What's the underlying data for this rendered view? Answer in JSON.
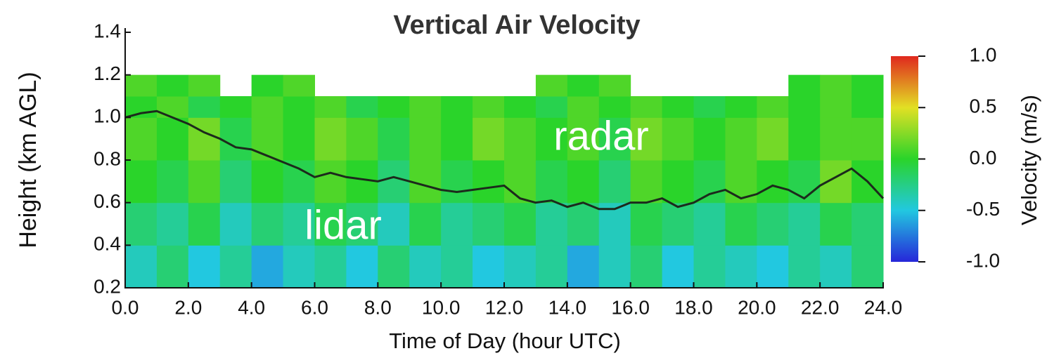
{
  "chart_data": {
    "type": "heatmap",
    "title": "Vertical Air Velocity",
    "x_label": "Time of Day (hour UTC)",
    "y_label": "Height (km AGL)",
    "colorbar_label": "Velocity (m/s)",
    "annotations": [
      "radar",
      "lidar"
    ],
    "xlim": [
      0,
      24
    ],
    "xticks": [
      {
        "value": 0,
        "label": "0.0"
      },
      {
        "value": 2,
        "label": "2.0"
      },
      {
        "value": 4,
        "label": "4.0"
      },
      {
        "value": 6,
        "label": "6.0"
      },
      {
        "value": 8,
        "label": "8.0"
      },
      {
        "value": 10,
        "label": "10.0"
      },
      {
        "value": 12,
        "label": "12.0"
      },
      {
        "value": 14,
        "label": "14.0"
      },
      {
        "value": 16,
        "label": "16.0"
      },
      {
        "value": 18,
        "label": "18.0"
      },
      {
        "value": 20,
        "label": "20.0"
      },
      {
        "value": 22,
        "label": "22.0"
      },
      {
        "value": 24,
        "label": "24.0"
      }
    ],
    "ylim": [
      0.2,
      1.4
    ],
    "yticks": [
      0.2,
      0.4,
      0.6,
      0.8,
      {
        "value": 1,
        "label": "1.0"
      },
      1.2,
      1.4
    ],
    "clim": [
      -1,
      1
    ],
    "cticks": [
      {
        "value": -1,
        "label": "-1.0"
      },
      -0.5,
      {
        "value": 0,
        "label": "0.0"
      },
      0.5,
      {
        "value": 1,
        "label": "1.0"
      }
    ],
    "colormap": [
      "#2626d9",
      "#22c8e0",
      "#2ad42a",
      "#e2e024",
      "#e0281e"
    ],
    "x_bins": [
      0,
      1,
      2,
      3,
      4,
      5,
      6,
      7,
      8,
      9,
      10,
      11,
      12,
      13,
      14,
      15,
      16,
      17,
      18,
      19,
      20,
      21,
      22,
      23,
      24
    ],
    "y_bins": [
      0.2,
      0.4,
      0.6,
      0.8,
      1.0,
      1.1,
      1.2
    ],
    "z": [
      [
        -0.4,
        -0.2,
        -0.5,
        -0.3,
        -0.6,
        -0.4,
        -0.3,
        -0.5,
        -0.2,
        -0.4,
        -0.3,
        -0.5,
        -0.4,
        -0.3,
        -0.6,
        -0.4,
        -0.2,
        -0.5,
        -0.3,
        -0.4,
        -0.5,
        -0.3,
        -0.4,
        -0.2
      ],
      [
        -0.2,
        -0.3,
        -0.1,
        -0.4,
        -0.2,
        -0.3,
        -0.1,
        -0.2,
        -0.4,
        -0.1,
        -0.3,
        -0.2,
        -0.1,
        -0.3,
        -0.2,
        -0.4,
        -0.1,
        -0.2,
        -0.3,
        -0.1,
        -0.2,
        -0.3,
        -0.1,
        -0.2
      ],
      [
        0.0,
        -0.1,
        0.1,
        -0.2,
        0.0,
        -0.1,
        0.1,
        0.0,
        -0.2,
        0.1,
        -0.1,
        0.0,
        0.1,
        -0.1,
        0.0,
        -0.2,
        0.1,
        0.0,
        -0.1,
        0.1,
        0.0,
        -0.1,
        0.2,
        0.0
      ],
      [
        0.1,
        0.0,
        0.2,
        -0.1,
        0.1,
        0.0,
        0.2,
        0.1,
        -0.1,
        0.1,
        0.0,
        0.2,
        0.1,
        0.0,
        0.1,
        -0.1,
        0.2,
        0.1,
        0.0,
        0.1,
        0.2,
        0.0,
        0.1,
        0.1
      ],
      [
        0.0,
        0.1,
        -0.1,
        0.0,
        0.1,
        0.0,
        0.1,
        -0.1,
        0.0,
        0.1,
        0.0,
        0.1,
        0.0,
        -0.1,
        0.1,
        0.0,
        0.1,
        0.0,
        -0.1,
        0.0,
        0.1,
        0.0,
        0.1,
        0.0
      ],
      [
        0.1,
        0.0,
        0.1,
        null,
        0.0,
        0.1,
        null,
        null,
        null,
        null,
        null,
        null,
        null,
        0.1,
        0.0,
        0.1,
        null,
        null,
        null,
        null,
        null,
        0.0,
        0.1,
        0.0
      ]
    ],
    "line": {
      "color": "#1c2a1c",
      "x": [
        0,
        0.5,
        1,
        1.5,
        2,
        2.5,
        3,
        3.5,
        4,
        4.5,
        5,
        5.5,
        6,
        6.5,
        7,
        7.5,
        8,
        8.5,
        9,
        9.5,
        10,
        10.5,
        11,
        11.5,
        12,
        12.5,
        13,
        13.5,
        14,
        14.5,
        15,
        15.5,
        16,
        16.5,
        17,
        17.5,
        18,
        18.5,
        19,
        19.5,
        20,
        20.5,
        21,
        21.5,
        22,
        22.5,
        23,
        23.5,
        24
      ],
      "values": [
        1.0,
        1.02,
        1.03,
        1.0,
        0.97,
        0.93,
        0.9,
        0.86,
        0.85,
        0.82,
        0.79,
        0.76,
        0.72,
        0.74,
        0.72,
        0.71,
        0.7,
        0.72,
        0.7,
        0.68,
        0.66,
        0.65,
        0.66,
        0.67,
        0.68,
        0.62,
        0.6,
        0.61,
        0.58,
        0.6,
        0.57,
        0.57,
        0.6,
        0.6,
        0.62,
        0.58,
        0.6,
        0.64,
        0.66,
        0.62,
        0.64,
        0.68,
        0.66,
        0.62,
        0.68,
        0.72,
        0.76,
        0.7,
        0.62
      ]
    }
  }
}
